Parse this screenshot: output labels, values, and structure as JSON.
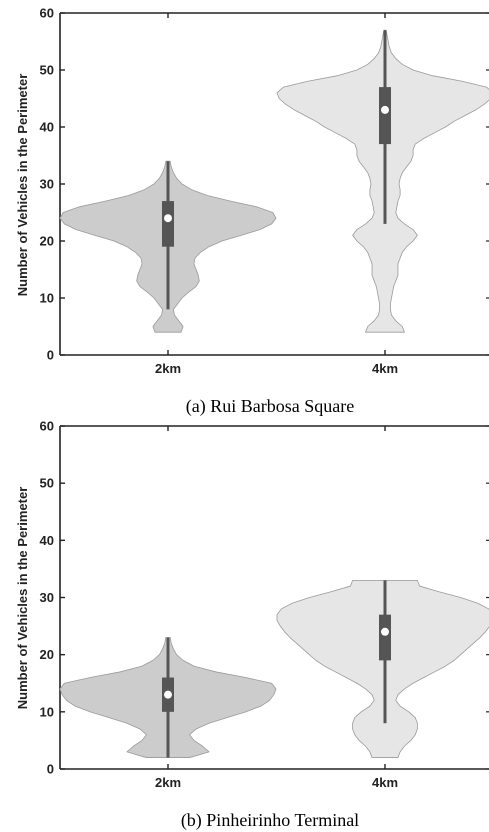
{
  "chart_data": [
    {
      "type": "violin",
      "caption": "(a) Rui Barbosa Square",
      "ylabel": "Number of Vehicles in the Perimeter",
      "ylim": [
        0,
        60
      ],
      "yticks": [
        0,
        10,
        20,
        30,
        40,
        50,
        60
      ],
      "categories": [
        "2km",
        "4km"
      ],
      "colors": [
        "#cccccc",
        "#e6e6e6"
      ],
      "series": [
        {
          "category": "2km",
          "min": 4,
          "q1": 19,
          "median": 24,
          "q3": 27,
          "max": 34,
          "whisker_low": 8,
          "whisker_high": 34,
          "density": [
            [
              4,
              0.12
            ],
            [
              5,
              0.14
            ],
            [
              6,
              0.1
            ],
            [
              7,
              0.06
            ],
            [
              8,
              0.05
            ],
            [
              9,
              0.09
            ],
            [
              10,
              0.13
            ],
            [
              11,
              0.19
            ],
            [
              12,
              0.26
            ],
            [
              13,
              0.29
            ],
            [
              14,
              0.28
            ],
            [
              15,
              0.26
            ],
            [
              16,
              0.24
            ],
            [
              17,
              0.25
            ],
            [
              18,
              0.3
            ],
            [
              19,
              0.38
            ],
            [
              20,
              0.5
            ],
            [
              21,
              0.68
            ],
            [
              22,
              0.85
            ],
            [
              23,
              0.96
            ],
            [
              24,
              1.0
            ],
            [
              25,
              0.97
            ],
            [
              26,
              0.82
            ],
            [
              27,
              0.58
            ],
            [
              28,
              0.36
            ],
            [
              29,
              0.22
            ],
            [
              30,
              0.13
            ],
            [
              31,
              0.08
            ],
            [
              32,
              0.05
            ],
            [
              33,
              0.03
            ],
            [
              34,
              0.02
            ]
          ]
        },
        {
          "category": "4km",
          "min": 4,
          "q1": 37,
          "median": 43,
          "q3": 47,
          "max": 57,
          "whisker_low": 23,
          "whisker_high": 57,
          "density": [
            [
              4,
              0.18
            ],
            [
              5,
              0.16
            ],
            [
              6,
              0.1
            ],
            [
              7,
              0.06
            ],
            [
              8,
              0.05
            ],
            [
              9,
              0.05
            ],
            [
              10,
              0.06
            ],
            [
              11,
              0.07
            ],
            [
              12,
              0.08
            ],
            [
              13,
              0.1
            ],
            [
              14,
              0.12
            ],
            [
              16,
              0.12
            ],
            [
              17,
              0.14
            ],
            [
              18,
              0.16
            ],
            [
              19,
              0.2
            ],
            [
              20,
              0.26
            ],
            [
              21,
              0.3
            ],
            [
              22,
              0.26
            ],
            [
              23,
              0.18
            ],
            [
              24,
              0.12
            ],
            [
              25,
              0.1
            ],
            [
              26,
              0.11
            ],
            [
              27,
              0.12
            ],
            [
              28,
              0.14
            ],
            [
              29,
              0.14
            ],
            [
              30,
              0.13
            ],
            [
              31,
              0.14
            ],
            [
              32,
              0.16
            ],
            [
              33,
              0.2
            ],
            [
              34,
              0.24
            ],
            [
              35,
              0.26
            ],
            [
              36,
              0.26
            ],
            [
              37,
              0.28
            ],
            [
              38,
              0.36
            ],
            [
              39,
              0.46
            ],
            [
              40,
              0.56
            ],
            [
              41,
              0.64
            ],
            [
              42,
              0.74
            ],
            [
              43,
              0.84
            ],
            [
              44,
              0.92
            ],
            [
              45,
              0.98
            ],
            [
              46,
              1.0
            ],
            [
              47,
              0.94
            ],
            [
              48,
              0.72
            ],
            [
              49,
              0.44
            ],
            [
              50,
              0.26
            ],
            [
              51,
              0.16
            ],
            [
              52,
              0.1
            ],
            [
              53,
              0.06
            ],
            [
              54,
              0.04
            ],
            [
              55,
              0.03
            ],
            [
              56,
              0.02
            ],
            [
              57,
              0.01
            ]
          ]
        }
      ]
    },
    {
      "type": "violin",
      "caption": "(b) Pinheirinho Terminal",
      "ylabel": "Number of Vehicles in the Perimeter",
      "ylim": [
        0,
        60
      ],
      "yticks": [
        0,
        10,
        20,
        30,
        40,
        50,
        60
      ],
      "categories": [
        "2km",
        "4km"
      ],
      "colors": [
        "#cccccc",
        "#e6e6e6"
      ],
      "series": [
        {
          "category": "2km",
          "min": 2,
          "q1": 10,
          "median": 13,
          "q3": 16,
          "max": 23,
          "whisker_low": 2,
          "whisker_high": 23,
          "density": [
            [
              2,
              0.2
            ],
            [
              3,
              0.38
            ],
            [
              4,
              0.32
            ],
            [
              5,
              0.24
            ],
            [
              6,
              0.2
            ],
            [
              7,
              0.26
            ],
            [
              8,
              0.38
            ],
            [
              9,
              0.55
            ],
            [
              10,
              0.72
            ],
            [
              11,
              0.86
            ],
            [
              12,
              0.94
            ],
            [
              13,
              0.98
            ],
            [
              14,
              1.0
            ],
            [
              15,
              0.96
            ],
            [
              16,
              0.72
            ],
            [
              17,
              0.44
            ],
            [
              18,
              0.24
            ],
            [
              19,
              0.14
            ],
            [
              20,
              0.08
            ],
            [
              21,
              0.05
            ],
            [
              22,
              0.03
            ],
            [
              23,
              0.02
            ]
          ]
        },
        {
          "category": "4km",
          "min": 2,
          "q1": 19,
          "median": 24,
          "q3": 27,
          "max": 33,
          "whisker_low": 8,
          "whisker_high": 33,
          "density": [
            [
              2,
              0.12
            ],
            [
              3,
              0.14
            ],
            [
              4,
              0.18
            ],
            [
              5,
              0.24
            ],
            [
              6,
              0.28
            ],
            [
              7,
              0.3
            ],
            [
              8,
              0.3
            ],
            [
              9,
              0.28
            ],
            [
              10,
              0.22
            ],
            [
              11,
              0.14
            ],
            [
              12,
              0.1
            ],
            [
              13,
              0.12
            ],
            [
              14,
              0.18
            ],
            [
              15,
              0.26
            ],
            [
              16,
              0.36
            ],
            [
              17,
              0.46
            ],
            [
              18,
              0.56
            ],
            [
              19,
              0.64
            ],
            [
              20,
              0.7
            ],
            [
              21,
              0.76
            ],
            [
              22,
              0.82
            ],
            [
              23,
              0.88
            ],
            [
              24,
              0.93
            ],
            [
              25,
              0.97
            ],
            [
              26,
              1.0
            ],
            [
              27,
              1.0
            ],
            [
              28,
              0.96
            ],
            [
              29,
              0.86
            ],
            [
              30,
              0.7
            ],
            [
              31,
              0.5
            ],
            [
              32,
              0.32
            ],
            [
              33,
              0.3
            ]
          ]
        }
      ]
    }
  ]
}
